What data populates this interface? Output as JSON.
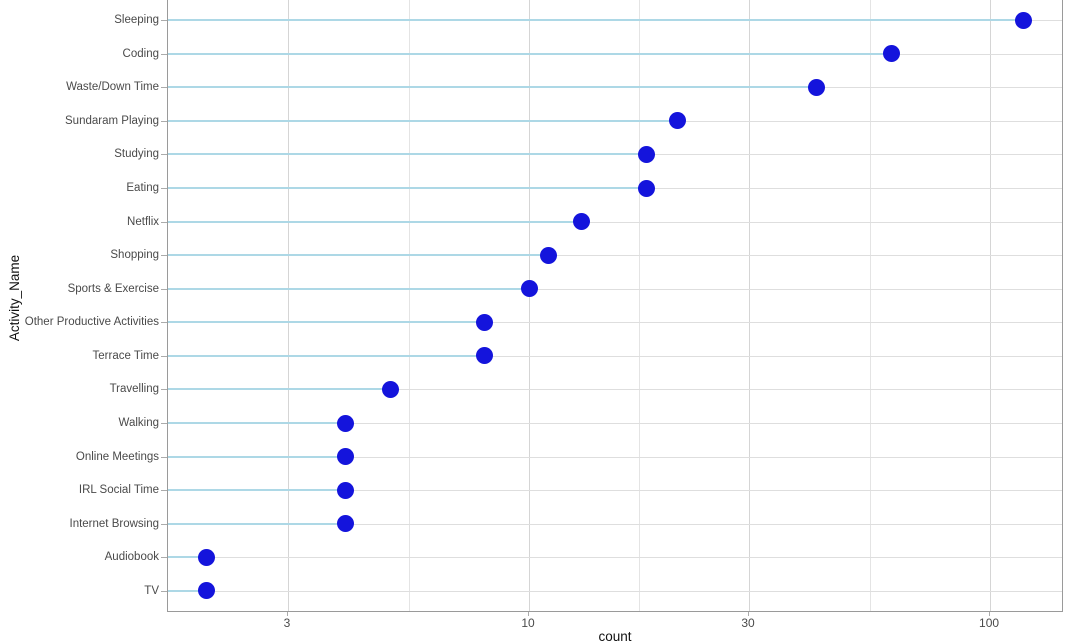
{
  "chart_data": {
    "type": "scatter",
    "variant": "horizontal-lollipop-dot-plot",
    "title": "",
    "xlabel": "count",
    "ylabel": "Activity_Name",
    "x_scale": "log10",
    "x_ticks": [
      3,
      10,
      30,
      100
    ],
    "xlim": [
      1.63,
      145
    ],
    "grid": "major and minor vertical gridlines, horizontal gridline per category",
    "legend_position": "none",
    "categories": [
      "Sleeping",
      "Coding",
      "Waste/Down Time",
      "Sundaram Playing",
      "Studying",
      "Eating",
      "Netflix",
      "Shopping",
      "Sports & Exercise",
      "Other Productive Activities",
      "Terrace Time",
      "Travelling",
      "Walking",
      "Online Meetings",
      "IRL Social Time",
      "Internet Browsing",
      "Audiobook",
      "TV"
    ],
    "values": [
      118,
      61,
      42,
      21,
      18,
      18,
      13,
      11,
      10,
      8,
      8,
      5,
      4,
      4,
      4,
      4,
      2,
      2
    ]
  },
  "colors": {
    "dot": "#1414DC",
    "stem": "#ADD8E6",
    "grid_major": "#D5D5D5",
    "grid_minor": "#E4E4E4",
    "panel_border": "#9A9A9A",
    "tick_text": "#4A4A4A",
    "axis_title_text": "#111111",
    "background": "#FFFFFF"
  }
}
